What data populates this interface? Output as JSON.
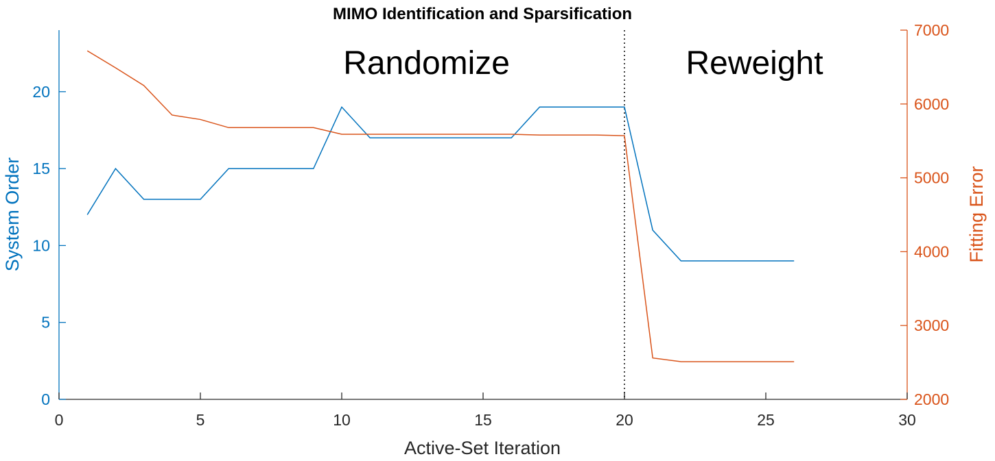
{
  "chart_data": {
    "type": "line",
    "title": "MIMO Identification and Sparsification",
    "xlabel": "Active-Set Iteration",
    "ylabel_left": "System Order",
    "ylabel_right": "Fitting Error",
    "xlim": [
      0,
      30
    ],
    "ylim_left": [
      0,
      24
    ],
    "ylim_right": [
      2000,
      7000
    ],
    "xticks": [
      0,
      5,
      10,
      15,
      20,
      25,
      30
    ],
    "yticks_left": [
      0,
      5,
      10,
      15,
      20
    ],
    "yticks_right": [
      2000,
      3000,
      4000,
      5000,
      6000,
      7000
    ],
    "grid": false,
    "colors": {
      "left": "#0072BD",
      "right": "#D95319",
      "axis": "#262626"
    },
    "x": [
      1,
      2,
      3,
      4,
      5,
      6,
      7,
      8,
      9,
      10,
      11,
      12,
      13,
      14,
      15,
      16,
      17,
      18,
      19,
      20,
      21,
      22,
      23,
      24,
      25,
      26
    ],
    "series": [
      {
        "axis": "left",
        "values": [
          12,
          15,
          13,
          13,
          13,
          15,
          15,
          15,
          15,
          19,
          17,
          17,
          17,
          17,
          17,
          17,
          19,
          19,
          19,
          19,
          11,
          9,
          9,
          9,
          9,
          9
        ]
      },
      {
        "axis": "right",
        "values": [
          6720,
          6490,
          6250,
          5850,
          5790,
          5680,
          5680,
          5680,
          5680,
          5590,
          5590,
          5590,
          5590,
          5590,
          5590,
          5590,
          5580,
          5580,
          5580,
          5570,
          2560,
          2510,
          2510,
          2510,
          2510,
          2510
        ]
      }
    ],
    "vline": {
      "x": 20,
      "style": "dotted"
    },
    "annotations": [
      {
        "text": "Randomize",
        "x": 13
      },
      {
        "text": "Reweight",
        "x": 24.6
      }
    ]
  }
}
